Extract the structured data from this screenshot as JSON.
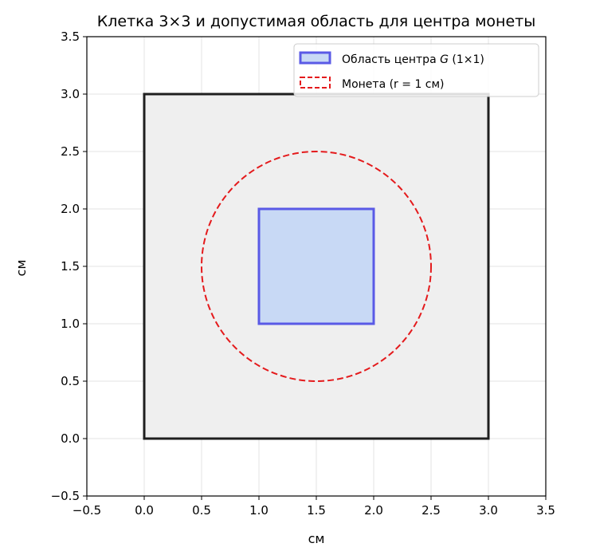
{
  "chart_data": {
    "type": "scatter",
    "title": "Клетка 3×3 и допустимая область для центра монеты",
    "xlabel": "см",
    "ylabel": "см",
    "xlim": [
      -0.5,
      3.5
    ],
    "ylim": [
      -0.5,
      3.5
    ],
    "xticks": [
      "−0.5",
      "0.0",
      "0.5",
      "1.0",
      "1.5",
      "2.0",
      "2.5",
      "3.0",
      "3.5"
    ],
    "yticks": [
      "−0.5",
      "0.0",
      "0.5",
      "1.0",
      "1.5",
      "2.0",
      "2.5",
      "3.0",
      "3.5"
    ],
    "xtick_values": [
      -0.5,
      0.0,
      0.5,
      1.0,
      1.5,
      2.0,
      2.5,
      3.0,
      3.5
    ],
    "ytick_values": [
      -0.5,
      0.0,
      0.5,
      1.0,
      1.5,
      2.0,
      2.5,
      3.0,
      3.5
    ],
    "grid": true,
    "legend_position": "top-right",
    "cell_square": {
      "x0": 0,
      "y0": 0,
      "x1": 3,
      "y1": 3
    },
    "center_region": {
      "x0": 1,
      "y0": 1,
      "x1": 2,
      "y1": 2
    },
    "coin": {
      "cx": 1.5,
      "cy": 1.5,
      "r": 1
    },
    "legend": [
      {
        "label_prefix": "Область центра ",
        "label_italic": "G",
        "label_suffix": " (1×1)"
      },
      {
        "label": "Монета (r = 1 см)"
      }
    ],
    "colors": {
      "cell_fill": "#efefef",
      "cell_stroke": "#1f1f1f",
      "region_fill": "#c8d9f5",
      "region_stroke": "#5a5ae6",
      "coin_stroke": "#e41a1c",
      "grid": "#e3e3e3"
    }
  }
}
